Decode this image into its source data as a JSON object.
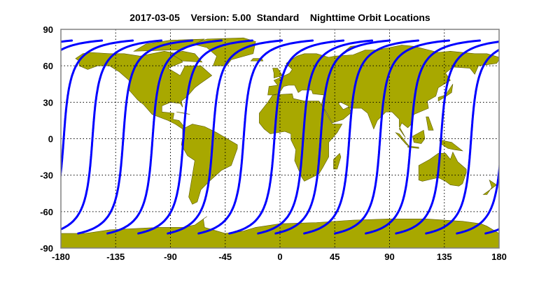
{
  "title": "2017-03-05    Version: 5.00  Standard    Nighttime Orbit Locations",
  "colors": {
    "land": "#a8a800",
    "land_edge": "#5a5a00",
    "orbit": "#0000ff",
    "grid": "#000000",
    "frame": "#808080",
    "ocean": "#ffffff"
  },
  "chart_data": {
    "type": "map",
    "projection": "equirectangular",
    "xlim": [
      -180,
      180
    ],
    "ylim": [
      -90,
      90
    ],
    "grid": true,
    "x_ticks": [
      "-180",
      "-135",
      "-90",
      "-45",
      "0",
      "45",
      "90",
      "135",
      "180"
    ],
    "y_ticks": [
      "90",
      "60",
      "30",
      "0",
      "-30",
      "-60",
      "-90"
    ],
    "orbit_equator_crossing_lon": [
      -177.7,
      -154.1,
      -128.8,
      -104.7,
      -79.4,
      -55.2,
      -29.9,
      -4.6,
      19.0,
      33.4,
      56.9,
      82.2,
      107.5,
      132.3,
      157.0
    ],
    "orbit_lat_range": [
      -78,
      81
    ],
    "land": [
      [
        [
          -168,
          66
        ],
        [
          -162,
          70
        ],
        [
          -156,
          71
        ],
        [
          -140,
          70
        ],
        [
          -128,
          70
        ],
        [
          -115,
          68
        ],
        [
          -95,
          72
        ],
        [
          -85,
          70
        ],
        [
          -80,
          63
        ],
        [
          -92,
          58
        ],
        [
          -82,
          52
        ],
        [
          -78,
          60
        ],
        [
          -65,
          60
        ],
        [
          -56,
          52
        ],
        [
          -66,
          45
        ],
        [
          -70,
          42
        ],
        [
          -76,
          35
        ],
        [
          -81,
          31
        ],
        [
          -80,
          26
        ],
        [
          -82,
          29
        ],
        [
          -90,
          30
        ],
        [
          -97,
          27
        ],
        [
          -97,
          22
        ],
        [
          -87,
          21
        ],
        [
          -88,
          16
        ],
        [
          -83,
          15
        ],
        [
          -77,
          8
        ],
        [
          -80,
          8
        ],
        [
          -86,
          12
        ],
        [
          -92,
          15
        ],
        [
          -105,
          20
        ],
        [
          -112,
          28
        ],
        [
          -117,
          32
        ],
        [
          -124,
          40
        ],
        [
          -124,
          48
        ],
        [
          -132,
          55
        ],
        [
          -140,
          60
        ],
        [
          -150,
          60
        ],
        [
          -158,
          57
        ],
        [
          -165,
          60
        ],
        [
          -165,
          64
        ]
      ],
      [
        [
          -55,
          60
        ],
        [
          -44,
          60
        ],
        [
          -40,
          65
        ],
        [
          -22,
          70
        ],
        [
          -20,
          80
        ],
        [
          -30,
          83
        ],
        [
          -60,
          82
        ],
        [
          -72,
          78
        ],
        [
          -60,
          75
        ],
        [
          -52,
          68
        ]
      ],
      [
        [
          -120,
          72
        ],
        [
          -90,
          73
        ],
        [
          -80,
          73
        ],
        [
          -62,
          82
        ],
        [
          -90,
          81
        ],
        [
          -110,
          78
        ]
      ],
      [
        [
          -80,
          64
        ],
        [
          -64,
          63
        ],
        [
          -70,
          70
        ],
        [
          -80,
          72
        ],
        [
          -90,
          70
        ]
      ],
      [
        [
          -85,
          22
        ],
        [
          -74,
          20
        ],
        [
          -78,
          21
        ]
      ],
      [
        [
          -80,
          8
        ],
        [
          -72,
          12
        ],
        [
          -62,
          10
        ],
        [
          -52,
          5
        ],
        [
          -35,
          -5
        ],
        [
          -35,
          -8
        ],
        [
          -40,
          -22
        ],
        [
          -48,
          -26
        ],
        [
          -58,
          -35
        ],
        [
          -65,
          -42
        ],
        [
          -68,
          -52
        ],
        [
          -72,
          -54
        ],
        [
          -75,
          -48
        ],
        [
          -72,
          -30
        ],
        [
          -70,
          -18
        ],
        [
          -76,
          -14
        ],
        [
          -81,
          -5
        ],
        [
          -80,
          1
        ]
      ],
      [
        [
          -10,
          36
        ],
        [
          -9,
          43
        ],
        [
          -2,
          44
        ],
        [
          -5,
          48
        ],
        [
          2,
          51
        ],
        [
          8,
          54
        ],
        [
          10,
          57
        ],
        [
          5,
          62
        ],
        [
          14,
          68
        ],
        [
          20,
          70
        ],
        [
          30,
          70
        ],
        [
          40,
          67
        ],
        [
          45,
          68
        ],
        [
          60,
          69
        ],
        [
          70,
          73
        ],
        [
          80,
          73
        ],
        [
          100,
          77
        ],
        [
          110,
          76
        ],
        [
          130,
          71
        ],
        [
          140,
          72
        ],
        [
          160,
          70
        ],
        [
          170,
          70
        ],
        [
          180,
          67
        ],
        [
          180,
          65
        ],
        [
          178,
          62
        ],
        [
          163,
          60
        ],
        [
          160,
          53
        ],
        [
          156,
          58
        ],
        [
          142,
          59
        ],
        [
          136,
          54
        ],
        [
          140,
          48
        ],
        [
          130,
          42
        ],
        [
          128,
          35
        ],
        [
          121,
          31
        ],
        [
          122,
          25
        ],
        [
          110,
          20
        ],
        [
          108,
          12
        ],
        [
          105,
          9
        ],
        [
          100,
          13
        ],
        [
          98,
          8
        ],
        [
          103,
          1
        ],
        [
          98,
          10
        ],
        [
          98,
          16
        ],
        [
          92,
          22
        ],
        [
          87,
          22
        ],
        [
          80,
          15
        ],
        [
          77,
          8
        ],
        [
          72,
          21
        ],
        [
          67,
          25
        ],
        [
          57,
          25
        ],
        [
          56,
          27
        ],
        [
          50,
          30
        ],
        [
          48,
          29
        ],
        [
          52,
          24
        ],
        [
          56,
          26
        ],
        [
          59,
          22
        ],
        [
          52,
          16
        ],
        [
          43,
          13
        ],
        [
          38,
          22
        ],
        [
          34,
          28
        ],
        [
          36,
          36
        ],
        [
          27,
          37
        ],
        [
          26,
          40
        ],
        [
          22,
          40
        ],
        [
          18,
          40
        ],
        [
          15,
          38
        ],
        [
          12,
          44
        ],
        [
          7,
          44
        ],
        [
          3,
          43
        ],
        [
          -1,
          37
        ],
        [
          -6,
          36
        ]
      ],
      [
        [
          -17,
          15
        ],
        [
          -17,
          21
        ],
        [
          -10,
          30
        ],
        [
          -6,
          36
        ],
        [
          10,
          37
        ],
        [
          11,
          33
        ],
        [
          20,
          31
        ],
        [
          32,
          31
        ],
        [
          34,
          28
        ],
        [
          43,
          12
        ],
        [
          51,
          12
        ],
        [
          47,
          5
        ],
        [
          40,
          -3
        ],
        [
          40,
          -15
        ],
        [
          35,
          -24
        ],
        [
          32,
          -29
        ],
        [
          20,
          -35
        ],
        [
          18,
          -32
        ],
        [
          12,
          -18
        ],
        [
          13,
          -9
        ],
        [
          9,
          -1
        ],
        [
          9,
          4
        ],
        [
          4,
          6
        ],
        [
          -8,
          4
        ],
        [
          -13,
          8
        ],
        [
          -17,
          13
        ]
      ],
      [
        [
          44,
          -25
        ],
        [
          47,
          -25
        ],
        [
          50,
          -15
        ],
        [
          49,
          -12
        ],
        [
          44,
          -17
        ]
      ],
      [
        [
          114,
          -22
        ],
        [
          114,
          -34
        ],
        [
          117,
          -35
        ],
        [
          130,
          -32
        ],
        [
          136,
          -35
        ],
        [
          140,
          -38
        ],
        [
          147,
          -39
        ],
        [
          150,
          -37
        ],
        [
          153,
          -28
        ],
        [
          153,
          -25
        ],
        [
          146,
          -19
        ],
        [
          142,
          -11
        ],
        [
          140,
          -17
        ],
        [
          136,
          -12
        ],
        [
          130,
          -12
        ],
        [
          123,
          -17
        ]
      ],
      [
        [
          109,
          2
        ],
        [
          118,
          7
        ],
        [
          119,
          0
        ],
        [
          116,
          -4
        ],
        [
          110,
          -3
        ]
      ],
      [
        [
          95,
          5
        ],
        [
          98,
          4
        ],
        [
          106,
          -6
        ],
        [
          104,
          -5
        ]
      ],
      [
        [
          105,
          -6
        ],
        [
          114,
          -7
        ],
        [
          114,
          -8
        ],
        [
          105,
          -7
        ]
      ],
      [
        [
          131,
          -1
        ],
        [
          141,
          -3
        ],
        [
          150,
          -10
        ],
        [
          143,
          -9
        ],
        [
          138,
          -8
        ],
        [
          132,
          -4
        ]
      ],
      [
        [
          120,
          18
        ],
        [
          122,
          18
        ],
        [
          126,
          7
        ],
        [
          122,
          7
        ]
      ],
      [
        [
          130,
          31
        ],
        [
          135,
          34
        ],
        [
          141,
          38
        ],
        [
          142,
          45
        ],
        [
          140,
          42
        ],
        [
          136,
          36
        ],
        [
          130,
          34
        ]
      ],
      [
        [
          -5,
          50
        ],
        [
          2,
          52
        ],
        [
          -2,
          58
        ],
        [
          -6,
          58
        ],
        [
          -5,
          54
        ]
      ],
      [
        [
          -24,
          64
        ],
        [
          -14,
          64
        ],
        [
          -15,
          66
        ],
        [
          -22,
          66
        ]
      ],
      [
        [
          52,
          71
        ],
        [
          58,
          76
        ],
        [
          68,
          77
        ],
        [
          55,
          73
        ]
      ],
      [
        [
          172,
          -34
        ],
        [
          178,
          -38
        ],
        [
          174,
          -41
        ],
        [
          167,
          -46
        ],
        [
          170,
          -46
        ],
        [
          174,
          -40
        ]
      ],
      [
        [
          -180,
          -78
        ],
        [
          -160,
          -78
        ],
        [
          -140,
          -75
        ],
        [
          -120,
          -74
        ],
        [
          -100,
          -73
        ],
        [
          -80,
          -73
        ],
        [
          -70,
          -71
        ],
        [
          -60,
          -64
        ],
        [
          -63,
          -66
        ],
        [
          -62,
          -73
        ],
        [
          -45,
          -78
        ],
        [
          -30,
          -76
        ],
        [
          -20,
          -73
        ],
        [
          0,
          -70
        ],
        [
          30,
          -69
        ],
        [
          60,
          -67
        ],
        [
          90,
          -66
        ],
        [
          120,
          -66
        ],
        [
          150,
          -68
        ],
        [
          165,
          -70
        ],
        [
          170,
          -72
        ],
        [
          180,
          -78
        ],
        [
          180,
          -90
        ],
        [
          -180,
          -90
        ]
      ]
    ]
  }
}
